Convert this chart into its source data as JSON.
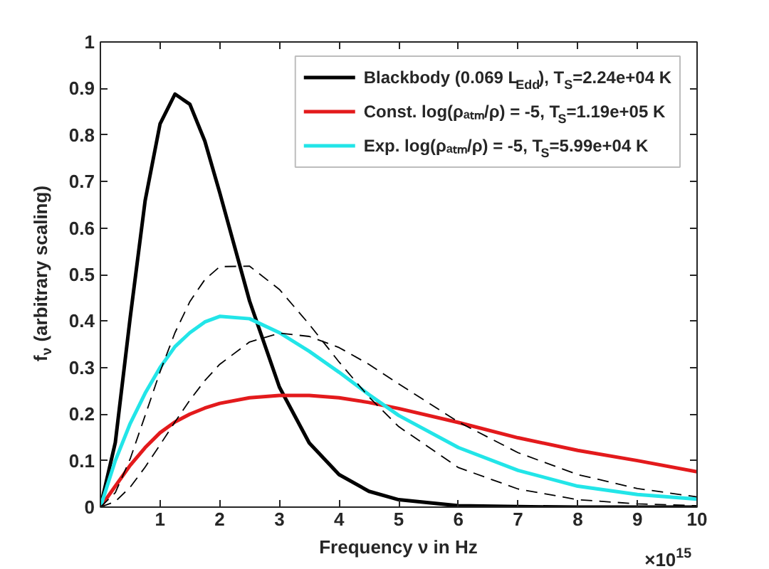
{
  "chart_data": {
    "type": "line",
    "xlabel": "Frequency ν in Hz",
    "ylabel": "f$_{ν}$ (arbitrary scaling)",
    "annotations": [
      "×10$^{15}$"
    ],
    "x": [
      0,
      0.25,
      0.5,
      0.75,
      1,
      1.25,
      1.5,
      1.75,
      2,
      2.5,
      3,
      3.5,
      4,
      4.5,
      5,
      6,
      7,
      8,
      9,
      10
    ],
    "series": [
      {
        "name": "Blackbody (0.069 L$_{Edd}$), T$_{S}$=2.24e+04 K",
        "color": "#000000",
        "line_style": "solid",
        "values": [
          0,
          0.139,
          0.408,
          0.659,
          0.824,
          0.888,
          0.866,
          0.787,
          0.676,
          0.443,
          0.258,
          0.138,
          0.07,
          0.034,
          0.016,
          0.003,
          0.001,
          0,
          0,
          0
        ]
      },
      {
        "name": "Const. log(ρₐₜₘ/ρ) = -5, T$_{S}$=1.19e+05 K",
        "color": "#e31a1c",
        "line_style": "solid",
        "values": [
          0,
          0.045,
          0.09,
          0.128,
          0.16,
          0.183,
          0.2,
          0.213,
          0.223,
          0.235,
          0.24,
          0.24,
          0.235,
          0.225,
          0.212,
          0.182,
          0.149,
          0.122,
          0.1,
          0.076
        ]
      },
      {
        "name": "Exp. log(ρₐₜₘ/ρ) = -5, T$_{S}$=5.99e+04 K",
        "color": "#22e5e8",
        "line_style": "solid",
        "values": [
          0,
          0.1,
          0.18,
          0.245,
          0.3,
          0.345,
          0.375,
          0.398,
          0.41,
          0.405,
          0.375,
          0.335,
          0.29,
          0.242,
          0.197,
          0.128,
          0.079,
          0.045,
          0.027,
          0.017
        ]
      },
      {
        "color": "#000000",
        "line_style": "dashed",
        "values": [
          0,
          0.031,
          0.104,
          0.197,
          0.291,
          0.375,
          0.442,
          0.489,
          0.517,
          0.518,
          0.468,
          0.393,
          0.312,
          0.237,
          0.173,
          0.085,
          0.039,
          0.016,
          0.007,
          0.003
        ]
      },
      {
        "color": "#000000",
        "line_style": "dashed",
        "values": [
          0,
          0.012,
          0.043,
          0.086,
          0.134,
          0.183,
          0.23,
          0.272,
          0.307,
          0.355,
          0.374,
          0.367,
          0.343,
          0.307,
          0.265,
          0.183,
          0.117,
          0.07,
          0.04,
          0.022
        ]
      }
    ],
    "xlim": [
      0,
      10
    ],
    "xticks": [
      1,
      2,
      3,
      4,
      5,
      6,
      7,
      8,
      9,
      10
    ],
    "ylim": [
      0,
      1
    ],
    "yticks": [
      0,
      0.1,
      0.2,
      0.3,
      0.4,
      0.5,
      0.6,
      0.7,
      0.8,
      0.9,
      1
    ],
    "grid": false,
    "legend": "top right"
  }
}
